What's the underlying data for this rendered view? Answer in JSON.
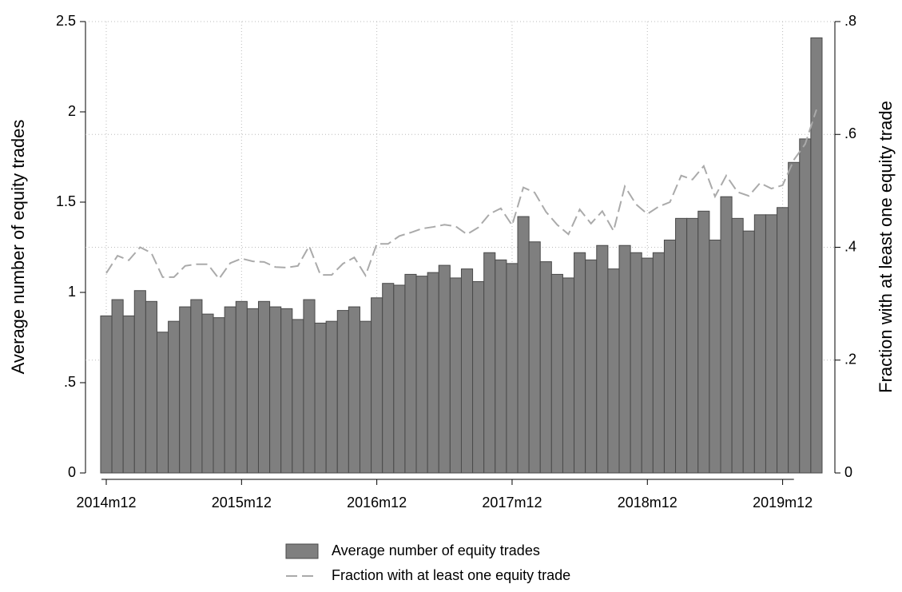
{
  "chart_data": {
    "type": "bar",
    "categories": [
      "2014m12",
      null,
      null,
      null,
      null,
      null,
      null,
      null,
      null,
      null,
      null,
      null,
      "2015m12",
      null,
      null,
      null,
      null,
      null,
      null,
      null,
      null,
      null,
      null,
      null,
      "2016m12",
      null,
      null,
      null,
      null,
      null,
      null,
      null,
      null,
      null,
      null,
      null,
      "2017m12",
      null,
      null,
      null,
      null,
      null,
      null,
      null,
      null,
      null,
      null,
      null,
      "2018m12",
      null,
      null,
      null,
      null,
      null,
      null,
      null,
      null,
      null,
      null,
      null,
      "2019m12",
      null,
      null,
      null
    ],
    "series": [
      {
        "name": "Average number of equity trades",
        "type": "bar",
        "color": "#7f7f7f",
        "values": [
          0.87,
          0.96,
          0.87,
          1.01,
          0.95,
          0.78,
          0.84,
          0.92,
          0.96,
          0.88,
          0.86,
          0.92,
          0.95,
          0.91,
          0.95,
          0.92,
          0.91,
          0.85,
          0.96,
          0.83,
          0.84,
          0.9,
          0.92,
          0.84,
          0.97,
          1.05,
          1.04,
          1.1,
          1.09,
          1.11,
          1.15,
          1.08,
          1.13,
          1.06,
          1.22,
          1.18,
          1.16,
          1.42,
          1.28,
          1.17,
          1.1,
          1.08,
          1.22,
          1.18,
          1.26,
          1.13,
          1.26,
          1.22,
          1.19,
          1.22,
          1.29,
          1.41,
          1.41,
          1.45,
          1.29,
          1.53,
          1.41,
          1.34,
          1.43,
          1.43,
          1.47,
          1.72,
          1.85,
          2.41
        ]
      },
      {
        "name": "Fraction with at least one equity trade",
        "type": "line",
        "axis": "y2",
        "color": "#aaaaaa",
        "line_style": "dashed",
        "values": [
          0.354,
          0.385,
          0.377,
          0.4,
          0.39,
          0.347,
          0.347,
          0.367,
          0.37,
          0.37,
          0.344,
          0.372,
          0.38,
          0.375,
          0.374,
          0.365,
          0.364,
          0.367,
          0.402,
          0.351,
          0.351,
          0.371,
          0.382,
          0.35,
          0.406,
          0.406,
          0.42,
          0.426,
          0.433,
          0.436,
          0.44,
          0.437,
          0.423,
          0.435,
          0.459,
          0.469,
          0.439,
          0.506,
          0.497,
          0.463,
          0.44,
          0.423,
          0.467,
          0.442,
          0.464,
          0.429,
          0.508,
          0.476,
          0.459,
          0.472,
          0.48,
          0.527,
          0.52,
          0.544,
          0.49,
          0.527,
          0.498,
          0.491,
          0.514,
          0.504,
          0.51,
          0.555,
          0.583,
          0.644
        ]
      }
    ],
    "y_label": "Average number of equity trades",
    "y2_label": "Fraction with at least one equity trade",
    "ylim": [
      0,
      2.5
    ],
    "yticks": [
      0,
      {
        "value": 0.5,
        "label": ".5"
      },
      1,
      1.5,
      2,
      2.5
    ],
    "y2lim": [
      0,
      0.8
    ],
    "y2ticks": [
      0,
      {
        "value": 0.2,
        "label": ".2"
      },
      {
        "value": 0.4,
        "label": ".4"
      },
      {
        "value": 0.6,
        "label": ".6"
      },
      {
        "value": 0.8,
        "label": ".8"
      }
    ],
    "grid": true,
    "legend": "bottom"
  }
}
